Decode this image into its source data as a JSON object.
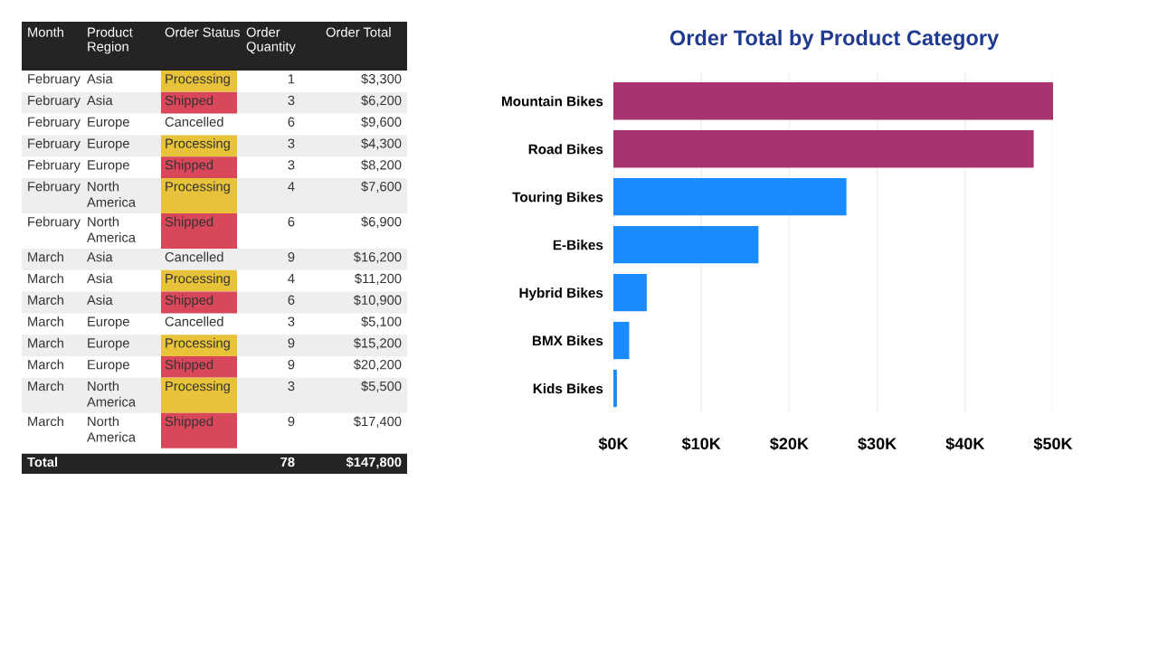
{
  "chart_data": [
    {
      "type": "other",
      "categories": [
        "Month",
        "Product Region",
        "Order Status",
        "Order Quantity",
        "Order Total"
      ],
      "annotations": [
        "February",
        "Asia",
        "Processing",
        "1",
        "$3,300",
        "February",
        "Asia",
        "Shipped",
        "3",
        "$6,200",
        "February",
        "Europe",
        "Cancelled",
        "6",
        "$9,600",
        "February",
        "Europe",
        "Processing",
        "3",
        "$4,300",
        "February",
        "Europe",
        "Shipped",
        "3",
        "$8,200",
        "February",
        "North America",
        "Processing",
        "4",
        "$7,600",
        "February",
        "North America",
        "Shipped",
        "6",
        "$6,900",
        "March",
        "Asia",
        "Cancelled",
        "9",
        "$16,200",
        "March",
        "Asia",
        "Processing",
        "4",
        "$11,200",
        "March",
        "Asia",
        "Shipped",
        "6",
        "$10,900",
        "March",
        "Europe",
        "Cancelled",
        "3",
        "$5,100",
        "March",
        "Europe",
        "Processing",
        "9",
        "$15,200",
        "March",
        "Europe",
        "Shipped",
        "9",
        "$20,200",
        "March",
        "North America",
        "Processing",
        "3",
        "$5,500",
        "March",
        "North America",
        "Shipped",
        "9",
        "$17,400",
        "Total",
        null,
        null,
        "78",
        "$147,800"
      ],
      "colors": [
        null,
        null,
        "#e8c33a",
        null,
        null,
        null,
        null,
        "#d9475a",
        null,
        null,
        null,
        null,
        null,
        null,
        null,
        null,
        null,
        "#e8c33a",
        null,
        null,
        null,
        null,
        "#d9475a",
        null,
        null,
        null,
        null,
        "#e8c33a",
        null,
        null,
        null,
        null,
        "#d9475a",
        null,
        null,
        null,
        null,
        null,
        null,
        null,
        null,
        null,
        "#e8c33a",
        null,
        null,
        null,
        null,
        "#d9475a",
        null,
        null,
        null,
        null,
        null,
        null,
        null,
        null,
        null,
        "#e8c33a",
        null,
        null,
        null,
        null,
        "#d9475a",
        null,
        null,
        null,
        null,
        "#e8c33a",
        null,
        null,
        null,
        null,
        "#d9475a",
        null,
        null,
        null,
        null,
        null,
        null,
        null
      ]
    },
    {
      "type": "bar",
      "orientation": "horizontal",
      "title": "Order Total by Product Category",
      "categories": [
        "Mountain Bikes",
        "Road Bikes",
        "Touring Bikes",
        "E-Bikes",
        "Hybrid Bikes",
        "BMX Bikes",
        "Kids Bikes"
      ],
      "values": [
        50000,
        47800,
        26500,
        16500,
        3800,
        1800,
        400
      ],
      "colors": [
        "#a8336f",
        "#a8336f",
        "#1a8cff",
        "#1a8cff",
        "#1a8cff",
        "#1a8cff",
        "#1a8cff"
      ],
      "xlim": [
        0,
        50000
      ],
      "xticks": [
        {
          "value": 0,
          "label": "$0K"
        },
        {
          "value": 10000,
          "label": "$10K"
        },
        {
          "value": 20000,
          "label": "$20K"
        },
        {
          "value": 30000,
          "label": "$30K"
        },
        {
          "value": 40000,
          "label": "$40K"
        },
        {
          "value": 50000,
          "label": "$50K"
        }
      ],
      "grid": "x"
    }
  ]
}
